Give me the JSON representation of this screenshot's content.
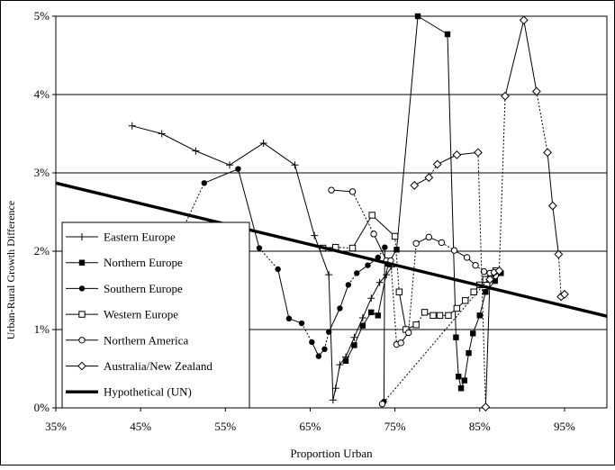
{
  "chart_data": {
    "type": "line",
    "title": "",
    "xlabel": "Proportion Urban",
    "ylabel": "Urban-Rural Growth Difference",
    "xlim": [
      0.35,
      1.0
    ],
    "ylim": [
      0,
      0.05
    ],
    "x_ticks": [
      {
        "value": 0.35,
        "label": "35%"
      },
      {
        "value": 0.45,
        "label": "45%"
      },
      {
        "value": 0.55,
        "label": "55%"
      },
      {
        "value": 0.65,
        "label": "65%"
      },
      {
        "value": 0.75,
        "label": "75%"
      },
      {
        "value": 0.85,
        "label": "85%"
      },
      {
        "value": 0.95,
        "label": "95%"
      }
    ],
    "y_ticks": [
      {
        "value": 0.0,
        "label": "0%"
      },
      {
        "value": 0.01,
        "label": "1%"
      },
      {
        "value": 0.02,
        "label": "2%"
      },
      {
        "value": 0.03,
        "label": "3%"
      },
      {
        "value": 0.04,
        "label": "4%"
      },
      {
        "value": 0.05,
        "label": "5%"
      }
    ],
    "grid": "horizontal",
    "legend_position": "bottom-left",
    "series": [
      {
        "name": "Eastern Europe",
        "marker": "plus",
        "line": "solid",
        "points": [
          [
            0.44,
            0.036
          ],
          [
            0.475,
            0.035
          ],
          [
            0.515,
            0.0328
          ],
          [
            0.555,
            0.031
          ],
          [
            0.595,
            0.0338
          ],
          [
            0.632,
            0.031
          ],
          [
            0.655,
            0.022
          ],
          [
            0.672,
            0.017
          ],
          [
            0.677,
            0.001
          ],
          [
            0.68,
            0.0025
          ],
          [
            0.685,
            0.0055
          ],
          [
            0.692,
            0.0065
          ],
          [
            0.702,
            0.009
          ],
          [
            0.712,
            0.0115
          ],
          [
            0.722,
            0.014
          ],
          [
            0.732,
            0.016
          ],
          [
            0.74,
            0.017
          ],
          [
            0.746,
            0.018
          ]
        ]
      },
      {
        "name": "Northern Europe",
        "marker": "square-filled",
        "line": "solid",
        "points": [
          [
            0.692,
            0.006
          ],
          [
            0.702,
            0.008
          ],
          [
            0.712,
            0.0105
          ],
          [
            0.722,
            0.0122
          ],
          [
            0.73,
            0.0118
          ],
          [
            0.742,
            0.0184
          ],
          [
            0.752,
            0.0202
          ],
          [
            0.777,
            0.05
          ],
          [
            0.812,
            0.0477
          ],
          [
            0.822,
            0.009
          ],
          [
            0.825,
            0.004
          ],
          [
            0.828,
            0.0025
          ],
          [
            0.832,
            0.0035
          ],
          [
            0.837,
            0.007
          ],
          [
            0.842,
            0.0095
          ],
          [
            0.85,
            0.0118
          ],
          [
            0.857,
            0.0148
          ],
          [
            0.868,
            0.0162
          ],
          [
            0.875,
            0.0172
          ]
        ]
      },
      {
        "name": "Southern Europe",
        "marker": "circle-filled",
        "line": "mixed",
        "points": [
          [
            0.47,
            0.0211
          ],
          [
            0.495,
            0.0217
          ],
          [
            0.525,
            0.0287
          ],
          [
            0.565,
            0.0305
          ],
          [
            0.59,
            0.0204
          ],
          [
            0.612,
            0.0177
          ],
          [
            0.625,
            0.0114
          ],
          [
            0.64,
            0.0108
          ],
          [
            0.652,
            0.0084
          ],
          [
            0.66,
            0.0066
          ],
          [
            0.667,
            0.0075
          ],
          [
            0.672,
            0.0097
          ],
          [
            0.685,
            0.0127
          ],
          [
            0.695,
            0.0157
          ],
          [
            0.705,
            0.0172
          ],
          [
            0.718,
            0.0182
          ],
          [
            0.73,
            0.0192
          ],
          [
            0.738,
            0.0205
          ],
          [
            0.737,
            0.0008
          ]
        ]
      },
      {
        "name": "Western Europe",
        "marker": "square-open",
        "line": "mixed",
        "points": [
          [
            0.665,
            0.0204
          ],
          [
            0.68,
            0.0205
          ],
          [
            0.7,
            0.0204
          ],
          [
            0.723,
            0.0246
          ],
          [
            0.75,
            0.0219
          ],
          [
            0.755,
            0.0148
          ],
          [
            0.763,
            0.01
          ],
          [
            0.775,
            0.0106
          ],
          [
            0.785,
            0.0122
          ],
          [
            0.795,
            0.0118
          ],
          [
            0.803,
            0.0118
          ],
          [
            0.813,
            0.0118
          ],
          [
            0.823,
            0.0127
          ],
          [
            0.833,
            0.0137
          ],
          [
            0.843,
            0.0148
          ],
          [
            0.85,
            0.0157
          ],
          [
            0.857,
            0.0164
          ],
          [
            0.863,
            0.0165
          ],
          [
            0.869,
            0.0175
          ]
        ]
      },
      {
        "name": "Northern America",
        "marker": "circle-open",
        "line": "mixed",
        "points": [
          [
            0.675,
            0.0278
          ],
          [
            0.7,
            0.0276
          ],
          [
            0.725,
            0.0222
          ],
          [
            0.74,
            0.0188
          ],
          [
            0.745,
            0.0188
          ],
          [
            0.752,
            0.0081
          ],
          [
            0.757,
            0.0083
          ],
          [
            0.766,
            0.0096
          ],
          [
            0.775,
            0.021
          ],
          [
            0.79,
            0.0218
          ],
          [
            0.805,
            0.0211
          ],
          [
            0.82,
            0.0201
          ],
          [
            0.835,
            0.0192
          ],
          [
            0.845,
            0.0182
          ],
          [
            0.855,
            0.0174
          ],
          [
            0.862,
            0.0172
          ],
          [
            0.867,
            0.0173
          ],
          [
            0.735,
            0.0005
          ]
        ]
      },
      {
        "name": "Australia/New Zealand",
        "marker": "diamond-open",
        "line": "mixed",
        "points": [
          [
            0.773,
            0.0284
          ],
          [
            0.79,
            0.0294
          ],
          [
            0.8,
            0.0311
          ],
          [
            0.823,
            0.0323
          ],
          [
            0.848,
            0.0326
          ],
          [
            0.857,
            0.0001
          ],
          [
            0.862,
            0.0164
          ],
          [
            0.873,
            0.0175
          ],
          [
            0.88,
            0.0398
          ],
          [
            0.902,
            0.0495
          ],
          [
            0.917,
            0.0404
          ],
          [
            0.93,
            0.0326
          ],
          [
            0.936,
            0.0258
          ],
          [
            0.943,
            0.0196
          ],
          [
            0.946,
            0.0142
          ],
          [
            0.95,
            0.0145
          ]
        ]
      },
      {
        "name": "Hypothetical (UN)",
        "marker": "none",
        "line": "thick",
        "points": [
          [
            0.35,
            0.0287
          ],
          [
            1.0,
            0.0117
          ]
        ]
      }
    ]
  }
}
